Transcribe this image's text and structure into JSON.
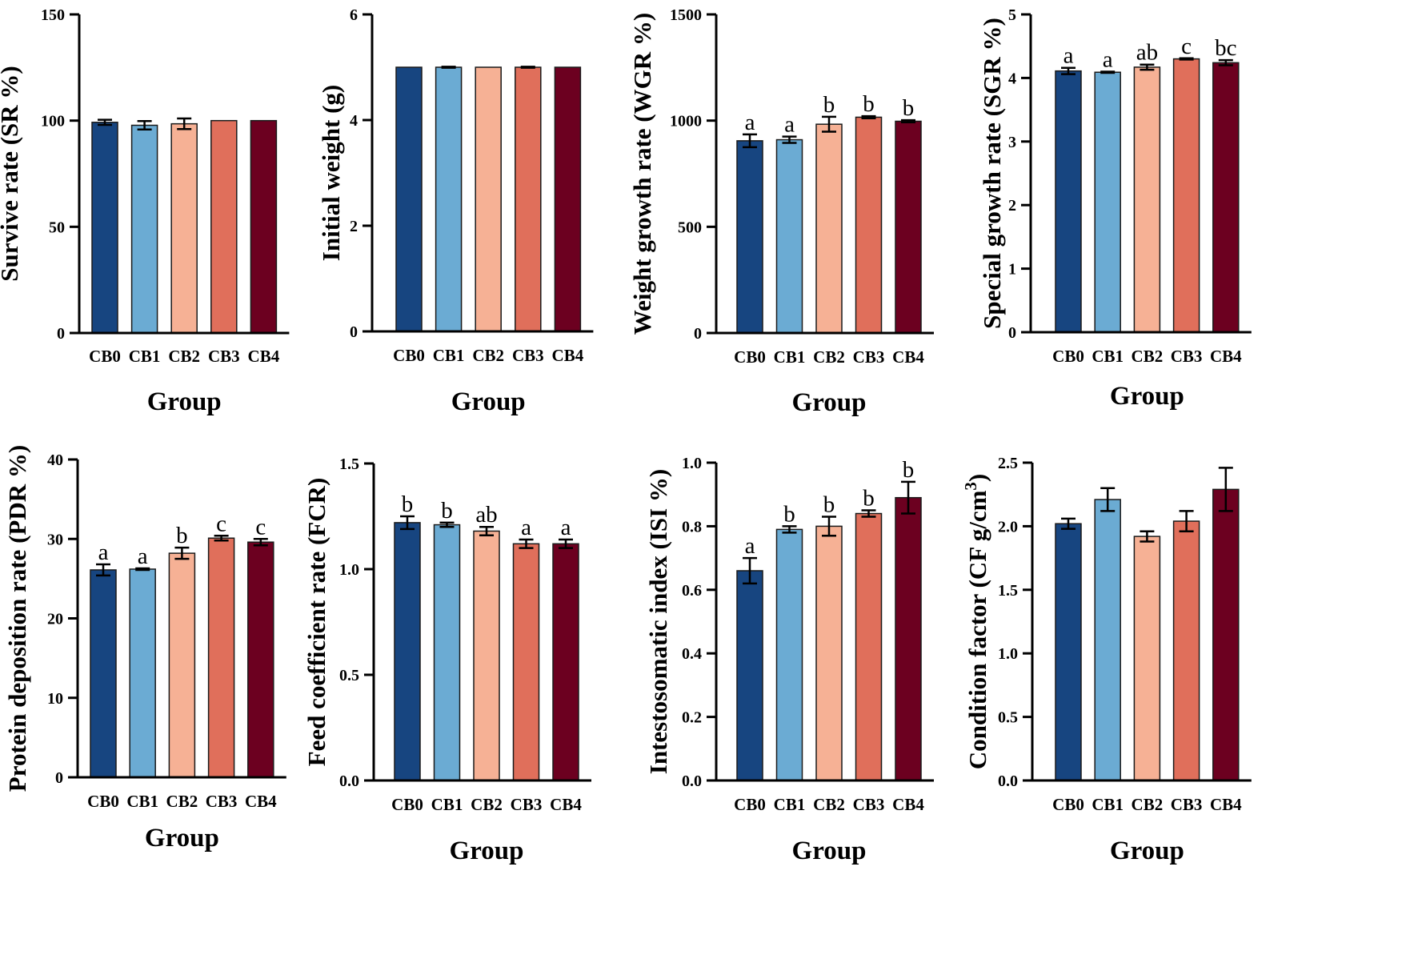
{
  "figure": {
    "group_label": "Group",
    "group_colors": [
      "#174580",
      "#6babd3",
      "#f6b195",
      "#e06f5b",
      "#6c0020"
    ]
  },
  "chart_data": [
    {
      "type": "bar",
      "title": "",
      "xlabel": "Group",
      "ylabel": "Survive rate (SR %)",
      "ylim": [
        0,
        150
      ],
      "yticks": [
        0,
        50,
        100,
        150
      ],
      "categories": [
        "CB0",
        "CB1",
        "CB2",
        "CB3",
        "CB4"
      ],
      "values": [
        99.2,
        97.8,
        98.5,
        100,
        100
      ],
      "errors": [
        1.2,
        2.0,
        2.5,
        0,
        0
      ],
      "labels": [
        "",
        "",
        "",
        "",
        ""
      ],
      "grid": false
    },
    {
      "type": "bar",
      "title": "",
      "xlabel": "Group",
      "ylabel": "Initial weight (g)",
      "ylim": [
        0,
        6
      ],
      "yticks": [
        0,
        2,
        4,
        6
      ],
      "categories": [
        "CB0",
        "CB1",
        "CB2",
        "CB3",
        "CB4"
      ],
      "values": [
        5.0,
        5.0,
        5.0,
        5.0,
        5.0
      ],
      "errors": [
        0,
        0.01,
        0,
        0.01,
        0
      ],
      "labels": [
        "",
        "",
        "",
        "",
        ""
      ],
      "grid": false
    },
    {
      "type": "bar",
      "title": "",
      "xlabel": "Group",
      "ylabel": "Weight growth rate (WGR %)",
      "ylim": [
        0,
        1500
      ],
      "yticks": [
        0,
        500,
        1000,
        1500
      ],
      "categories": [
        "CB0",
        "CB1",
        "CB2",
        "CB3",
        "CB4"
      ],
      "values": [
        905,
        910,
        983,
        1016,
        997
      ],
      "errors": [
        30,
        15,
        35,
        5,
        5
      ],
      "labels": [
        "a",
        "a",
        "b",
        "b",
        "b"
      ],
      "grid": false
    },
    {
      "type": "bar",
      "title": "",
      "xlabel": "Group",
      "ylabel": "Special growth rate (SGR %)",
      "ylim": [
        0,
        5
      ],
      "yticks": [
        0,
        1,
        2,
        3,
        4,
        5
      ],
      "categories": [
        "CB0",
        "CB1",
        "CB2",
        "CB3",
        "CB4"
      ],
      "values": [
        4.11,
        4.09,
        4.17,
        4.3,
        4.24
      ],
      "errors": [
        0.05,
        0.01,
        0.04,
        0.01,
        0.04
      ],
      "labels": [
        "a",
        "a",
        "ab",
        "c",
        "bc"
      ],
      "grid": false
    },
    {
      "type": "bar",
      "title": "",
      "xlabel": "Group",
      "ylabel": "Protein deposition rate (PDR %)",
      "ylim": [
        0,
        40
      ],
      "yticks": [
        0,
        10,
        20,
        30,
        40
      ],
      "categories": [
        "CB0",
        "CB1",
        "CB2",
        "CB3",
        "CB4"
      ],
      "values": [
        26.1,
        26.2,
        28.2,
        30.1,
        29.6
      ],
      "errors": [
        0.7,
        0.1,
        0.7,
        0.3,
        0.4
      ],
      "labels": [
        "a",
        "a",
        "b",
        "c",
        "c"
      ],
      "grid": false
    },
    {
      "type": "bar",
      "title": "",
      "xlabel": "Group",
      "ylabel": "Feed coefficient rate (FCR)",
      "ylim": [
        0,
        1.5
      ],
      "yticks": [
        0.0,
        0.5,
        1.0,
        1.5
      ],
      "categories": [
        "CB0",
        "CB1",
        "CB2",
        "CB3",
        "CB4"
      ],
      "values": [
        1.22,
        1.21,
        1.18,
        1.12,
        1.12
      ],
      "errors": [
        0.03,
        0.01,
        0.02,
        0.02,
        0.02
      ],
      "labels": [
        "b",
        "b",
        "ab",
        "a",
        "a"
      ],
      "grid": false
    },
    {
      "type": "bar",
      "title": "",
      "xlabel": "Group",
      "ylabel": "Intestosomatic index (ISI %)",
      "ylim": [
        0,
        1.0
      ],
      "yticks": [
        0.0,
        0.2,
        0.4,
        0.6,
        0.8,
        1.0
      ],
      "categories": [
        "CB0",
        "CB1",
        "CB2",
        "CB3",
        "CB4"
      ],
      "values": [
        0.66,
        0.79,
        0.8,
        0.84,
        0.89
      ],
      "errors": [
        0.04,
        0.01,
        0.03,
        0.01,
        0.05
      ],
      "labels": [
        "a",
        "b",
        "b",
        "b",
        "b"
      ],
      "grid": false
    },
    {
      "type": "bar",
      "title": "",
      "xlabel": "Group",
      "ylabel": "Condition factor (CF g/cm",
      "ylabel_superscript": "3",
      "ylabel_suffix": ")",
      "ylim": [
        0,
        2.5
      ],
      "yticks": [
        0.0,
        0.5,
        1.0,
        1.5,
        2.0,
        2.5
      ],
      "categories": [
        "CB0",
        "CB1",
        "CB2",
        "CB3",
        "CB4"
      ],
      "values": [
        2.02,
        2.21,
        1.92,
        2.04,
        2.29
      ],
      "errors": [
        0.04,
        0.09,
        0.04,
        0.08,
        0.17
      ],
      "labels": [
        "",
        "",
        "",
        "",
        ""
      ],
      "grid": false
    }
  ]
}
